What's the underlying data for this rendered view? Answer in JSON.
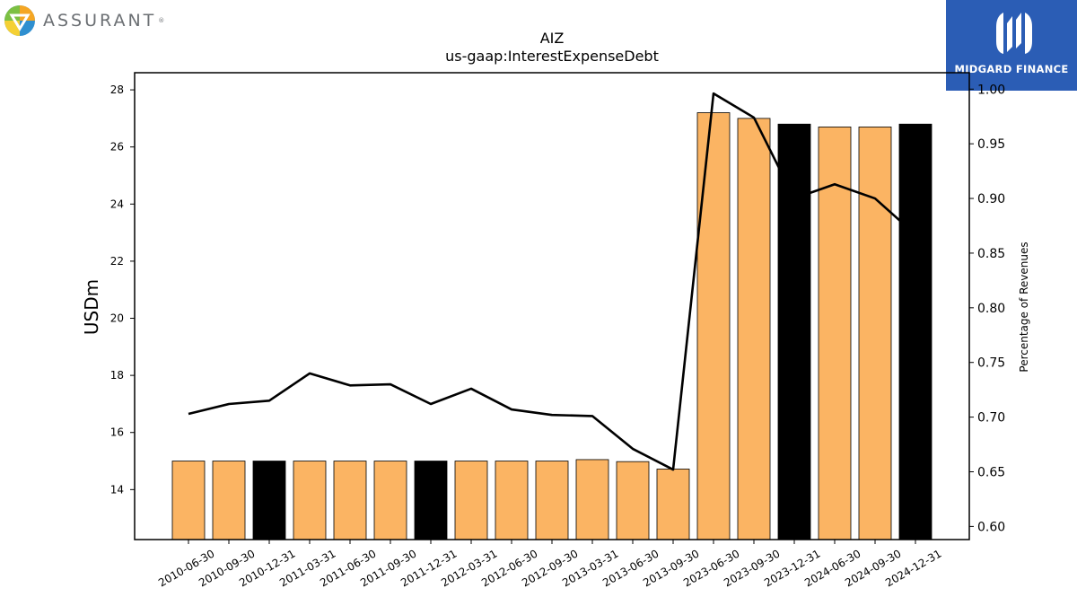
{
  "logos": {
    "left_text": "ASSURANT",
    "left_mark": "®",
    "right_text": "MIDGARD FINANCE"
  },
  "chart_data": {
    "type": "bar",
    "title": "AIZ",
    "subtitle": "us-gaap:InterestExpenseDebt",
    "ylabel": "USDm",
    "y2label": "Percentage of Revenues",
    "categories": [
      "2010-06-30",
      "2010-09-30",
      "2010-12-31",
      "2011-03-31",
      "2011-06-30",
      "2011-09-30",
      "2011-12-31",
      "2012-03-31",
      "2012-06-30",
      "2012-09-30",
      "2013-03-31",
      "2013-06-30",
      "2013-09-30",
      "2023-06-30",
      "2023-09-30",
      "2023-12-31",
      "2024-06-30",
      "2024-09-30",
      "2024-12-31"
    ],
    "series": [
      {
        "type": "bar",
        "axis": "left",
        "values": [
          15.0,
          15.0,
          15.0,
          15.0,
          15.0,
          15.0,
          15.0,
          15.0,
          15.0,
          15.0,
          15.05,
          14.98,
          14.72,
          27.2,
          27.0,
          26.8,
          26.7,
          26.7,
          26.8
        ],
        "colors": [
          "#fbb463",
          "#fbb463",
          "#000000",
          "#fbb463",
          "#fbb463",
          "#fbb463",
          "#000000",
          "#fbb463",
          "#fbb463",
          "#fbb463",
          "#fbb463",
          "#fbb463",
          "#fbb463",
          "#fbb463",
          "#fbb463",
          "#000000",
          "#fbb463",
          "#fbb463",
          "#000000"
        ]
      },
      {
        "type": "line",
        "axis": "right",
        "color": "#000000",
        "values": [
          0.703,
          0.712,
          0.715,
          0.74,
          0.729,
          0.73,
          0.712,
          0.726,
          0.707,
          0.702,
          0.701,
          0.671,
          0.652,
          0.996,
          0.974,
          0.9,
          0.913,
          0.9,
          0.867
        ]
      }
    ],
    "ylim": [
      12.25,
      28.6
    ],
    "y2lim": [
      0.588,
      1.015
    ],
    "yticks": [
      14,
      16,
      18,
      20,
      22,
      24,
      26,
      28
    ],
    "y2ticks": [
      0.6,
      0.65,
      0.7,
      0.75,
      0.8,
      0.85,
      0.9,
      0.95,
      1.0
    ],
    "y2tick_labels": [
      "0.60",
      "0.65",
      "0.70",
      "0.75",
      "0.80",
      "0.85",
      "0.90",
      "0.95",
      "1.00"
    ],
    "grid": false
  }
}
